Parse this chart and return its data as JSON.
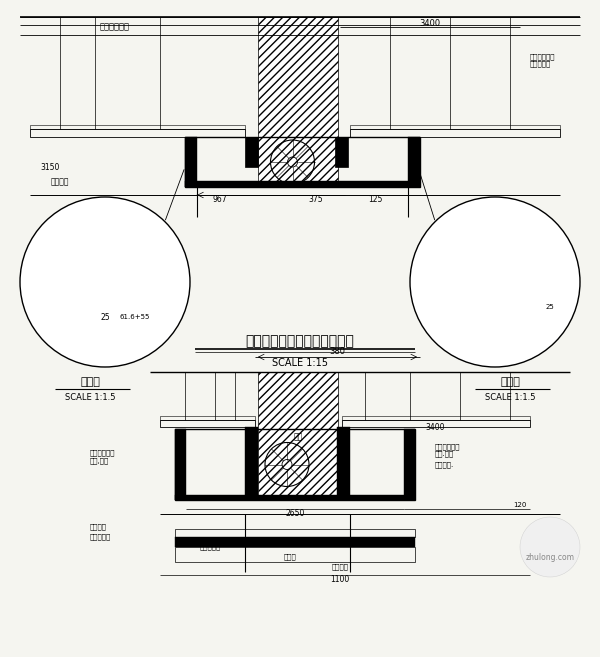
{
  "title": "二层防火卷帘位置天花剖面图",
  "subtitle": "SCALE 1:15",
  "bg_color": "#f5f5f0",
  "line_color": "#000000",
  "hatch_color": "#000000",
  "text_color": "#000000",
  "left_label": "大样图",
  "left_scale": "SCALE 1:1.5",
  "right_label": "大样图",
  "right_scale": "SCALE 1:1.5",
  "watermark_text": "zhulong.com",
  "fig_width": 6.0,
  "fig_height": 6.57
}
